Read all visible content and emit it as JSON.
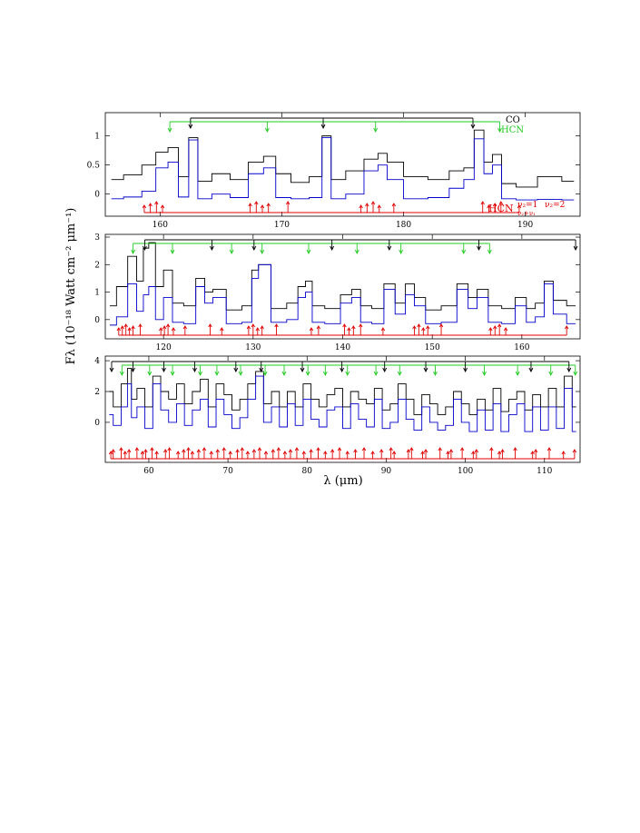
{
  "figure": {
    "xlabel": "λ (μm)",
    "ylabel": "Fλ (10⁻¹⁸ Watt cm⁻² μm⁻¹)"
  },
  "legend": {
    "co": "CO",
    "hcn": "HCN",
    "hcn_red": "HCN",
    "v2_label": "ν₂=1",
    "v2b_label": "ν₂=2",
    "combo_label": "ν₂+ν₁"
  },
  "colors": {
    "observed": "#000000",
    "model": "#0000cc",
    "co_markers": "#000000",
    "hcn_markers": "#22cc22",
    "hcn_vib_markers": "#e00000"
  },
  "chart_data": [
    {
      "type": "line",
      "panel": "top",
      "xlim": [
        155.5,
        194.5
      ],
      "ylim": [
        -0.38,
        1.4
      ],
      "xticks": [
        160,
        170,
        180,
        190
      ],
      "yticks": [
        0,
        0.5,
        1
      ],
      "ytick_labels": [
        "0",
        "0.5",
        "1"
      ],
      "series": [
        {
          "role": "observed",
          "x": [
            156,
            158,
            159,
            160.3,
            161,
            162,
            162.7,
            163.5,
            165,
            166.5,
            168,
            169,
            170,
            171.5,
            173,
            173.6,
            174.5,
            176,
            177.5,
            178.3,
            179,
            181,
            183,
            184.5,
            185.4,
            186.2,
            187,
            187.6,
            188.5,
            190,
            192,
            194
          ],
          "y": [
            0.25,
            0.33,
            0.5,
            0.72,
            0.8,
            0.3,
            0.97,
            0.22,
            0.35,
            0.25,
            0.55,
            0.65,
            0.35,
            0.2,
            0.3,
            1.0,
            0.25,
            0.4,
            0.6,
            0.7,
            0.55,
            0.3,
            0.25,
            0.4,
            0.45,
            1.1,
            0.55,
            0.68,
            0.18,
            0.12,
            0.3,
            0.22
          ]
        },
        {
          "role": "model",
          "x": [
            156,
            158,
            159,
            160.3,
            161,
            162,
            162.7,
            163.5,
            165,
            166.5,
            168,
            169,
            170,
            171.5,
            173,
            173.6,
            174.5,
            176,
            177.5,
            178.3,
            179,
            181,
            183,
            184.5,
            185.4,
            186.2,
            187,
            187.6,
            188.5,
            190,
            192,
            194
          ],
          "y": [
            -0.08,
            -0.05,
            0.05,
            0.45,
            0.55,
            -0.05,
            0.93,
            -0.08,
            0.0,
            -0.06,
            0.35,
            0.45,
            -0.06,
            -0.08,
            -0.06,
            0.97,
            -0.08,
            0.0,
            0.4,
            0.5,
            0.25,
            -0.08,
            -0.06,
            0.1,
            0.25,
            0.95,
            0.35,
            0.5,
            -0.08,
            -0.1,
            -0.09,
            -0.1
          ]
        }
      ],
      "co_lines": [
        162.5,
        173.4,
        185.7
      ],
      "hcn_lines": [
        160.8,
        168.8,
        177.7,
        187.9
      ],
      "red_lines": [
        158.7,
        159.2,
        159.7,
        160.2,
        167.4,
        167.9,
        168.4,
        168.9,
        170.5,
        176.5,
        177.0,
        177.5,
        178.0,
        179.2,
        186.5,
        187.0,
        187.5,
        188.0,
        189.5
      ]
    },
    {
      "type": "line",
      "panel": "middle",
      "xlim": [
        113.5,
        166.5
      ],
      "ylim": [
        -0.7,
        3.1
      ],
      "xticks": [
        120,
        130,
        140,
        150,
        160
      ],
      "yticks": [
        0,
        1,
        2,
        3
      ],
      "ytick_labels": [
        "0",
        "1",
        "2",
        "3"
      ],
      "series": [
        {
          "role": "observed",
          "x": [
            114,
            115.5,
            116.5,
            117.5,
            118,
            118.7,
            119.5,
            120.5,
            121.5,
            123,
            124.2,
            125,
            126,
            128,
            129.5,
            130.2,
            131,
            133,
            134.5,
            135.5,
            136.2,
            137,
            139,
            140.5,
            141.5,
            142.5,
            144,
            145.2,
            146.5,
            147.5,
            148.5,
            150,
            152,
            153.5,
            154.5,
            155.5,
            157,
            158.5,
            160,
            161,
            162,
            163,
            164,
            166
          ],
          "y": [
            0.5,
            1.2,
            2.3,
            1.4,
            2.6,
            2.8,
            1.2,
            1.8,
            0.6,
            0.5,
            1.5,
            1.0,
            1.1,
            0.35,
            0.5,
            1.8,
            2.0,
            0.4,
            0.6,
            1.2,
            1.4,
            0.5,
            0.4,
            0.9,
            1.1,
            0.5,
            0.4,
            1.3,
            0.6,
            1.3,
            0.8,
            0.35,
            0.5,
            1.3,
            0.8,
            1.1,
            0.5,
            0.4,
            0.8,
            0.4,
            0.6,
            1.4,
            0.7,
            0.5
          ]
        },
        {
          "role": "model",
          "x": [
            114,
            115.5,
            116.5,
            117.5,
            118,
            118.7,
            119.5,
            120.5,
            121.5,
            123,
            124.2,
            125,
            126,
            128,
            129.5,
            130.2,
            131,
            133,
            134.5,
            135.5,
            136.2,
            137,
            139,
            140.5,
            141.5,
            142.5,
            144,
            145.2,
            146.5,
            147.5,
            148.5,
            150,
            152,
            153.5,
            154.5,
            155.5,
            157,
            158.5,
            160,
            161,
            162,
            163,
            164,
            166
          ],
          "y": [
            -0.2,
            0.1,
            1.3,
            0.3,
            0.9,
            1.2,
            0.0,
            0.8,
            -0.1,
            -0.15,
            1.2,
            0.6,
            0.8,
            -0.15,
            -0.1,
            1.5,
            2.0,
            -0.1,
            0.0,
            0.8,
            1.0,
            -0.1,
            -0.15,
            0.6,
            0.8,
            -0.1,
            -0.15,
            1.1,
            0.2,
            0.9,
            0.5,
            -0.15,
            -0.1,
            1.1,
            0.4,
            0.8,
            -0.1,
            -0.15,
            0.5,
            -0.1,
            0.1,
            1.3,
            0.2,
            -0.15
          ]
        }
      ],
      "co_lines": [
        117.9,
        125.4,
        130.1,
        138.8,
        145.2,
        155.2,
        166.0
      ],
      "hcn_lines": [
        116.6,
        121.0,
        127.6,
        131.0,
        136.2,
        141.6,
        146.5,
        153.5,
        156.4
      ],
      "red_lines": [
        115.0,
        115.4,
        115.8,
        116.2,
        116.6,
        117.4,
        119.7,
        120.1,
        120.5,
        121.1,
        122.4,
        125.2,
        126.5,
        129.5,
        130.0,
        130.5,
        131.0,
        132.6,
        136.5,
        137.3,
        140.2,
        140.7,
        141.2,
        142.0,
        144.5,
        148.0,
        148.5,
        149.0,
        149.5,
        151.0,
        156.5,
        157.0,
        157.5,
        158.2,
        165.0
      ]
    },
    {
      "type": "line",
      "panel": "bottom",
      "xlim": [
        54.5,
        114.5
      ],
      "ylim": [
        -2.6,
        4.3
      ],
      "xticks": [
        60,
        70,
        80,
        90,
        100,
        110
      ],
      "yticks": [
        0,
        2,
        4
      ],
      "ytick_labels": [
        "0",
        "2",
        "4"
      ],
      "series": [
        {
          "role": "observed",
          "x": [
            55,
            56,
            57,
            57.6,
            58,
            59,
            60,
            61,
            62,
            63,
            64,
            65,
            66,
            67,
            68,
            69,
            70,
            71,
            72,
            73,
            74,
            75,
            76,
            77,
            78,
            79,
            80,
            81,
            82,
            83,
            84,
            85,
            86,
            87,
            88,
            89,
            90,
            91,
            92,
            93,
            94,
            95,
            96,
            97,
            98,
            99,
            100,
            101,
            102,
            103,
            104,
            105,
            106,
            107,
            108,
            109,
            110,
            111,
            112,
            113,
            114
          ],
          "y": [
            2.0,
            1.0,
            2.5,
            3.5,
            1.5,
            2.2,
            1.0,
            3.0,
            2.0,
            1.5,
            2.5,
            1.2,
            2.0,
            2.8,
            1.0,
            2.5,
            1.8,
            0.8,
            1.5,
            2.5,
            3.3,
            1.2,
            2.0,
            1.0,
            2.0,
            1.0,
            2.5,
            1.5,
            1.0,
            1.8,
            2.2,
            1.0,
            2.0,
            1.5,
            1.2,
            2.2,
            0.8,
            1.2,
            2.5,
            1.5,
            0.5,
            1.8,
            1.2,
            0.5,
            1.0,
            2.0,
            1.2,
            0.5,
            1.5,
            0.8,
            2.2,
            0.7,
            1.5,
            2.0,
            0.8,
            1.8,
            1.0,
            2.2,
            1.0,
            3.0,
            1.0
          ]
        },
        {
          "role": "model",
          "x": [
            55,
            56,
            57,
            57.6,
            58,
            59,
            60,
            61,
            62,
            63,
            64,
            65,
            66,
            67,
            68,
            69,
            70,
            71,
            72,
            73,
            74,
            75,
            76,
            77,
            78,
            79,
            80,
            81,
            82,
            83,
            84,
            85,
            86,
            87,
            88,
            89,
            90,
            91,
            92,
            93,
            94,
            95,
            96,
            97,
            98,
            99,
            100,
            101,
            102,
            103,
            104,
            105,
            106,
            107,
            108,
            109,
            110,
            111,
            112,
            113,
            114
          ],
          "y": [
            0.5,
            -0.2,
            1.0,
            2.5,
            0.3,
            1.0,
            -0.4,
            2.5,
            0.8,
            0.0,
            1.2,
            -0.2,
            0.8,
            1.5,
            -0.3,
            1.5,
            0.5,
            -0.4,
            0.3,
            1.5,
            3.0,
            0.0,
            1.0,
            -0.3,
            1.2,
            -0.2,
            1.5,
            0.2,
            -0.3,
            0.8,
            1.0,
            -0.4,
            1.2,
            0.2,
            -0.3,
            1.5,
            -0.4,
            0.0,
            1.5,
            0.2,
            -0.5,
            1.0,
            0.0,
            -0.5,
            -0.2,
            1.5,
            0.0,
            -0.6,
            0.8,
            -0.5,
            1.2,
            -0.6,
            0.5,
            1.2,
            -0.6,
            1.0,
            -0.5,
            1.0,
            -0.4,
            2.2,
            -0.6
          ]
        }
      ],
      "co_lines": [
        55.3,
        58.0,
        61.9,
        65.8,
        71.0,
        74.2,
        79.4,
        84.4,
        89.8,
        95.0,
        100.0,
        108.3,
        113.1
      ],
      "hcn_lines": [
        56.6,
        60.1,
        63.0,
        66.5,
        68.6,
        71.6,
        74.7,
        77.1,
        80.1,
        82.3,
        85.1,
        88.7,
        91.7,
        96.2,
        102.4,
        106.6,
        110.8,
        113.9
      ],
      "red_lines": [
        55.2,
        55.5,
        56.5,
        57.0,
        57.5,
        58.5,
        59.2,
        59.6,
        60.4,
        61.0,
        62.1,
        62.6,
        63.7,
        64.4,
        65.0,
        65.5,
        66.3,
        67.0,
        67.9,
        68.7,
        69.5,
        70.3,
        71.2,
        71.8,
        72.5,
        73.3,
        74.0,
        74.8,
        75.7,
        76.4,
        77.2,
        77.9,
        78.7,
        79.6,
        80.5,
        81.4,
        82.3,
        83.2,
        84.1,
        85.1,
        86.1,
        87.2,
        88.3,
        89.4,
        90.6,
        91.0,
        92.8,
        93.2,
        94.6,
        95.0,
        96.8,
        97.8,
        98.2,
        99.6,
        101.0,
        101.4,
        103.3,
        104.3,
        104.7,
        106.3,
        108.5,
        108.9,
        110.6,
        112.4,
        113.8
      ]
    }
  ]
}
